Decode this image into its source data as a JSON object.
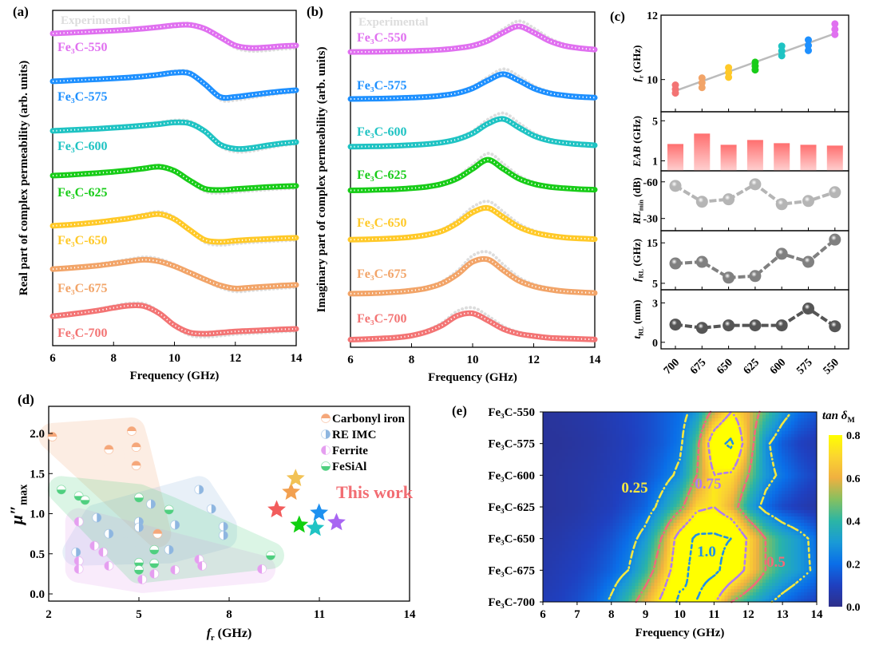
{
  "colors": {
    "Fe₃C-550": "#e070f0",
    "Fe₃C-575": "#1e90ff",
    "Fe₃C-600": "#1fc3c3",
    "Fe₃C-625": "#18cc18",
    "Fe₃C-650": "#ffc928",
    "Fe₃C-675": "#f2a468",
    "Fe₃C-700": "#f37474",
    "experimental": "#dddddd"
  },
  "chart_data": [
    {
      "panel": "(a)",
      "type": "line",
      "xlabel": "Frequency (GHz)",
      "ylabel": "Real part of complex permeability (arb. units)",
      "xlim": [
        6,
        14
      ],
      "xticks": [
        6,
        8,
        10,
        12,
        14
      ],
      "legend": "Experimental",
      "x": [
        6,
        6.5,
        7,
        7.5,
        8,
        8.5,
        9,
        9.5,
        10,
        10.5,
        11,
        11.5,
        12,
        12.5,
        13,
        13.5,
        14
      ],
      "series": [
        {
          "name": "Fe₃C-550",
          "values": [
            0.6,
            0.63,
            0.66,
            0.69,
            0.72,
            0.76,
            0.81,
            0.87,
            0.94,
            0.96,
            0.8,
            0.45,
            0.1,
            0.0,
            0.02,
            0.07,
            0.1
          ]
        },
        {
          "name": "Fe₃C-575",
          "values": [
            0.67,
            0.7,
            0.73,
            0.76,
            0.79,
            0.83,
            0.88,
            0.95,
            1.03,
            1.0,
            0.55,
            0.02,
            0.02,
            0.1,
            0.18,
            0.25,
            0.3
          ]
        },
        {
          "name": "Fe₃C-600",
          "values": [
            0.77,
            0.8,
            0.83,
            0.86,
            0.9,
            0.94,
            0.99,
            1.05,
            1.12,
            1.08,
            0.75,
            0.2,
            0.02,
            0.05,
            0.15,
            0.24,
            0.3
          ]
        },
        {
          "name": "Fe₃C-625",
          "values": [
            0.6,
            0.63,
            0.67,
            0.71,
            0.76,
            0.82,
            0.9,
            0.97,
            0.8,
            0.4,
            0.05,
            0.0,
            0.04,
            0.08,
            0.12,
            0.15,
            0.17
          ]
        },
        {
          "name": "Fe₃C-650",
          "values": [
            0.67,
            0.71,
            0.76,
            0.82,
            0.9,
            0.98,
            1.08,
            1.16,
            0.95,
            0.5,
            0.08,
            0.0,
            0.05,
            0.09,
            0.12,
            0.15,
            0.17
          ]
        },
        {
          "name": "Fe₃C-675",
          "values": [
            0.83,
            0.87,
            0.92,
            0.98,
            1.06,
            1.15,
            1.22,
            1.15,
            0.95,
            0.68,
            0.4,
            0.15,
            0.02,
            0.06,
            0.1,
            0.14,
            0.17
          ]
        },
        {
          "name": "Fe₃C-700",
          "values": [
            0.73,
            0.8,
            0.88,
            0.97,
            1.08,
            1.17,
            1.15,
            0.85,
            0.35,
            0.05,
            0.0,
            0.04,
            0.09,
            0.12,
            0.15,
            0.18,
            0.2
          ]
        }
      ]
    },
    {
      "panel": "(b)",
      "type": "line",
      "xlabel": "Frequency (GHz)",
      "ylabel": "Imaginary part of complex permeability (arb. units)",
      "xlim": [
        6,
        14
      ],
      "xticks": [
        6,
        8,
        10,
        12,
        14
      ],
      "legend": "Experimental",
      "x": [
        6,
        6.5,
        7,
        7.5,
        8,
        8.5,
        9,
        9.5,
        10,
        10.5,
        11,
        11.5,
        12,
        12.5,
        13,
        13.5,
        14
      ],
      "series": [
        {
          "name": "Fe₃C-550",
          "values": [
            0.03,
            0.034,
            0.042,
            0.053,
            0.068,
            0.09,
            0.127,
            0.19,
            0.29,
            0.5,
            0.84,
            1.1,
            0.84,
            0.5,
            0.29,
            0.19,
            0.13
          ]
        },
        {
          "name": "Fe₃C-575",
          "values": [
            0.033,
            0.04,
            0.05,
            0.066,
            0.09,
            0.12,
            0.18,
            0.28,
            0.48,
            0.81,
            1.07,
            0.81,
            0.48,
            0.28,
            0.18,
            0.12,
            0.09
          ]
        },
        {
          "name": "Fe₃C-600",
          "values": [
            0.04,
            0.05,
            0.06,
            0.08,
            0.11,
            0.15,
            0.22,
            0.35,
            0.6,
            1.0,
            1.2,
            0.85,
            0.5,
            0.3,
            0.2,
            0.14,
            0.1
          ]
        },
        {
          "name": "Fe₃C-625",
          "values": [
            0.05,
            0.06,
            0.08,
            0.1,
            0.14,
            0.2,
            0.32,
            0.55,
            0.95,
            1.33,
            0.95,
            0.55,
            0.32,
            0.2,
            0.14,
            0.1,
            0.08
          ]
        },
        {
          "name": "Fe₃C-650",
          "values": [
            0.06,
            0.07,
            0.09,
            0.12,
            0.17,
            0.26,
            0.42,
            0.75,
            1.2,
            1.38,
            1.0,
            0.6,
            0.36,
            0.23,
            0.15,
            0.11,
            0.08
          ]
        },
        {
          "name": "Fe₃C-675",
          "values": [
            0.07,
            0.08,
            0.1,
            0.14,
            0.2,
            0.3,
            0.5,
            0.88,
            1.4,
            1.5,
            1.05,
            0.62,
            0.38,
            0.25,
            0.17,
            0.13,
            0.1
          ]
        },
        {
          "name": "Fe₃C-700",
          "values": [
            0.05,
            0.07,
            0.1,
            0.14,
            0.22,
            0.38,
            0.65,
            1.05,
            1.15,
            0.85,
            0.5,
            0.3,
            0.2,
            0.13,
            0.1,
            0.08,
            0.06
          ]
        }
      ]
    },
    {
      "panel": "(c)",
      "type": "multi",
      "categories": [
        "700",
        "675",
        "650",
        "625",
        "600",
        "575",
        "550"
      ],
      "subplots": [
        {
          "kind": "scatter-fit",
          "ylabel": "f_r (GHz)",
          "ylabel_main": "f",
          "ylabel_sub": "r",
          "ylabel_unit": " (GHz)",
          "ylim": [
            9.0,
            12.0
          ],
          "yticks": [
            10,
            12
          ],
          "points": [
            [
              9.83,
              9.7,
              9.58
            ],
            [
              10.05,
              9.9,
              9.75
            ],
            [
              10.37,
              10.22,
              10.07
            ],
            [
              10.54,
              10.42,
              10.3
            ],
            [
              11.04,
              10.89,
              10.74
            ],
            [
              11.23,
              11.06,
              10.9
            ],
            [
              11.73,
              11.56,
              11.4
            ]
          ],
          "fit": [
            9.65,
            11.43
          ],
          "fit_color": "#bbbbbb"
        },
        {
          "kind": "bar",
          "ylabel": "EAB (GHz)",
          "ylabel_main": "EAB",
          "ylabel_sub": "",
          "ylabel_unit": " (GHz)",
          "ylim": [
            0,
            5.9
          ],
          "yticks": [
            1,
            5
          ],
          "values": [
            2.68,
            3.72,
            2.6,
            3.08,
            2.76,
            2.6,
            2.52
          ],
          "color": "#ff6f6f"
        },
        {
          "kind": "line",
          "ylabel": "RL_min (dB)",
          "ylabel_main": "RL",
          "ylabel_sub": "min",
          "ylabel_unit": " (dB)",
          "ylim": [
            -20,
            -69
          ],
          "yticks": [
            -60,
            -30
          ],
          "values": [
            -56.7,
            -43.7,
            -45.7,
            -58.0,
            -41.7,
            -44.3,
            -51.5
          ],
          "color": "#b5b5b5"
        },
        {
          "kind": "line",
          "ylabel": "f_RL (GHz)",
          "ylabel_main": "f",
          "ylabel_sub": "RL",
          "ylabel_unit": " (GHz)",
          "ylim": [
            3.4,
            18
          ],
          "yticks": [
            5,
            15
          ],
          "values": [
            9.9,
            10.3,
            6.4,
            6.8,
            12.3,
            10.3,
            15.8
          ],
          "color": "#808080"
        },
        {
          "kind": "line",
          "ylabel": "t_RL (mm)",
          "ylabel_main": "t",
          "ylabel_sub": "RL",
          "ylabel_unit": " (mm)",
          "ylim": [
            -0.5,
            4.0
          ],
          "yticks": [
            0,
            3
          ],
          "values": [
            1.35,
            1.1,
            1.29,
            1.29,
            1.29,
            2.57,
            1.22
          ],
          "color": "#555555"
        }
      ]
    },
    {
      "panel": "(d)",
      "type": "scatter",
      "xlabel": "f_r (GHz)",
      "xlabel_main": "f",
      "xlabel_sub": "r",
      "xlabel_unit": " (GHz)",
      "ylabel_main": "μ″",
      "ylabel_sub": "max",
      "xlim": [
        2,
        14
      ],
      "ylim": [
        -0.06,
        2.3
      ],
      "xticks": [
        2,
        5,
        8,
        11,
        14
      ],
      "yticks": [
        "0.0",
        "0.5",
        "1.0",
        "1.5",
        "2.0"
      ],
      "legend_position": "top-right",
      "groups": [
        {
          "name": "Carbonyl iron",
          "color": "#f5a77a",
          "half": "top",
          "points": [
            [
              2.12,
              1.96
            ],
            [
              4.0,
              1.8
            ],
            [
              4.76,
              2.03
            ],
            [
              4.91,
              1.83
            ],
            [
              4.91,
              1.6
            ],
            [
              5.62,
              0.75
            ]
          ]
        },
        {
          "name": "RE IMC",
          "color": "#8eb6e0",
          "half": "right",
          "points": [
            [
              7.0,
              1.3
            ],
            [
              5.4,
              1.12
            ],
            [
              7.41,
              1.06
            ],
            [
              3.6,
              0.95
            ],
            [
              4.0,
              0.75
            ],
            [
              5.0,
              0.9
            ],
            [
              5.0,
              0.83
            ],
            [
              6.2,
              0.86
            ],
            [
              7.81,
              0.84
            ],
            [
              7.81,
              0.73
            ],
            [
              2.91,
              0.52
            ],
            [
              6.0,
              0.55
            ]
          ]
        },
        {
          "name": "Ferrite",
          "color": "#e59ef0",
          "half": "left",
          "points": [
            [
              3.0,
              0.9
            ],
            [
              3.52,
              0.6
            ],
            [
              3.81,
              0.52
            ],
            [
              3.0,
              0.41
            ],
            [
              3.0,
              0.31
            ],
            [
              4.0,
              0.35
            ],
            [
              5.11,
              0.18
            ],
            [
              5.51,
              0.25
            ],
            [
              6.2,
              0.3
            ],
            [
              7.0,
              0.43
            ],
            [
              7.1,
              0.35
            ],
            [
              9.09,
              0.31
            ]
          ]
        },
        {
          "name": "FeSiAl",
          "color": "#4fcf7f",
          "half": "bottom",
          "points": [
            [
              2.42,
              1.3
            ],
            [
              3.0,
              1.22
            ],
            [
              3.21,
              1.17
            ],
            [
              5.0,
              1.2
            ],
            [
              6.0,
              1.05
            ],
            [
              5.51,
              0.55
            ],
            [
              5.0,
              0.39
            ],
            [
              5.0,
              0.3
            ],
            [
              5.51,
              0.38
            ],
            [
              9.38,
              0.48
            ]
          ]
        }
      ],
      "this_work": {
        "label": "This work",
        "color": "#f26d73",
        "points": [
          {
            "sample": "Fe₃C-700",
            "x": 9.58,
            "y": 1.05
          },
          {
            "sample": "Fe₃C-675",
            "x": 10.06,
            "y": 1.27
          },
          {
            "sample": "Fe₃C-650",
            "x": 10.21,
            "y": 1.44
          },
          {
            "sample": "Fe₃C-625",
            "x": 10.33,
            "y": 0.86
          },
          {
            "sample": "Fe₃C-600",
            "x": 10.86,
            "y": 0.82
          },
          {
            "sample": "Fe₃C-575",
            "x": 10.99,
            "y": 1.01
          },
          {
            "sample": "Fe₃C-550",
            "x": 11.57,
            "y": 0.89
          }
        ],
        "star_colors": [
          "#f25c5c",
          "#f2a050",
          "#f2c255",
          "#10d010",
          "#20c4c4",
          "#1e90f0",
          "#a865f2"
        ]
      }
    },
    {
      "panel": "(e)",
      "type": "heatmap",
      "xlabel": "Frequency (GHz)",
      "xlim": [
        6,
        14
      ],
      "xticks": [
        6,
        7,
        8,
        9,
        10,
        11,
        12,
        13,
        14
      ],
      "rows": [
        "Fe₃C-550",
        "Fe₃C-575",
        "Fe₃C-600",
        "Fe₃C-625",
        "Fe₃C-650",
        "Fe₃C-675",
        "Fe₃C-700"
      ],
      "colorbar_title_main": "tan δ",
      "colorbar_title_sub": "M",
      "colorbar_range": [
        0.0,
        0.8
      ],
      "colorbar_ticks": [
        "0.0",
        "0.2",
        "0.4",
        "0.6",
        "0.8"
      ],
      "x": [
        6,
        6.5,
        7,
        7.5,
        8,
        8.5,
        9,
        9.5,
        10,
        10.5,
        11,
        11.5,
        12,
        12.5,
        13,
        13.5,
        14
      ],
      "values": [
        [
          0.03,
          0.04,
          0.05,
          0.06,
          0.08,
          0.1,
          0.12,
          0.16,
          0.2,
          0.3,
          0.55,
          0.75,
          0.6,
          0.45,
          0.3,
          0.2,
          0.15
        ],
        [
          0.03,
          0.03,
          0.04,
          0.05,
          0.07,
          0.09,
          0.12,
          0.16,
          0.22,
          0.45,
          0.9,
          1.05,
          0.6,
          0.28,
          0.16,
          0.1,
          0.07
        ],
        [
          0.03,
          0.04,
          0.05,
          0.06,
          0.08,
          0.1,
          0.14,
          0.2,
          0.28,
          0.5,
          0.75,
          0.72,
          0.5,
          0.3,
          0.22,
          0.15,
          0.1
        ],
        [
          0.03,
          0.04,
          0.05,
          0.07,
          0.09,
          0.13,
          0.18,
          0.3,
          0.45,
          0.7,
          0.75,
          0.6,
          0.35,
          0.2,
          0.12,
          0.08,
          0.05
        ],
        [
          0.05,
          0.06,
          0.08,
          0.1,
          0.14,
          0.2,
          0.3,
          0.52,
          0.85,
          1.05,
          1.05,
          1.0,
          0.72,
          0.5,
          0.38,
          0.3,
          0.2
        ],
        [
          0.06,
          0.08,
          0.1,
          0.13,
          0.18,
          0.25,
          0.4,
          0.62,
          0.9,
          1.1,
          1.05,
          0.9,
          0.7,
          0.5,
          0.38,
          0.3,
          0.22
        ],
        [
          0.08,
          0.1,
          0.13,
          0.18,
          0.27,
          0.42,
          0.6,
          0.8,
          1.05,
          1.0,
          0.78,
          0.5,
          0.38,
          0.28,
          0.2,
          0.14,
          0.1
        ]
      ],
      "contours": [
        {
          "level": 0.25,
          "label": "0.25",
          "color": "#f5e840"
        },
        {
          "level": 0.5,
          "label": "0.5",
          "color": "#f26a7a"
        },
        {
          "level": 0.75,
          "label": "0.75",
          "color": "#b07cf0"
        },
        {
          "level": 1.0,
          "label": "1.0",
          "color": "#1f8fe8"
        }
      ]
    }
  ]
}
